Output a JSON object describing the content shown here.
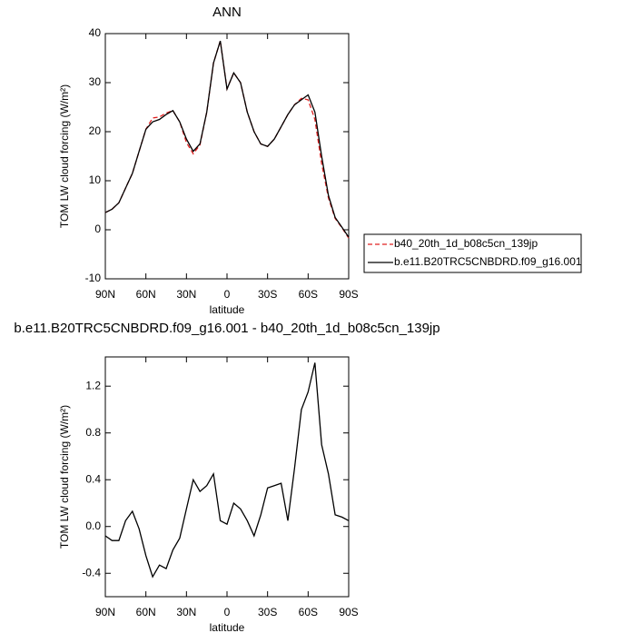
{
  "chart_data": [
    {
      "type": "line",
      "title": "ANN",
      "xlabel": "latitude",
      "ylabel": "TOM LW cloud forcing (W/m²)",
      "x": [
        90,
        85,
        80,
        75,
        70,
        65,
        60,
        55,
        50,
        45,
        40,
        35,
        30,
        25,
        20,
        15,
        10,
        5,
        0,
        -5,
        -10,
        -15,
        -20,
        -25,
        -30,
        -35,
        -40,
        -45,
        -50,
        -55,
        -60,
        -65,
        -70,
        -75,
        -80,
        -85,
        -90
      ],
      "series": [
        {
          "name": "b40_20th_1d_b08c5cn_139jp",
          "color": "#e02020",
          "line_style": "dashed",
          "values": [
            3.5,
            4.2,
            5.5,
            8.5,
            11.5,
            16,
            20.5,
            22.8,
            23,
            23.8,
            24.3,
            22,
            17.8,
            15.5,
            17.3,
            24,
            34,
            38.5,
            28.7,
            32,
            30,
            24,
            20,
            17.5,
            17,
            18.5,
            21,
            23.5,
            25.5,
            26.8,
            26.5,
            22.5,
            13.5,
            6.5,
            2.3,
            0.4,
            -1.7
          ]
        },
        {
          "name": "b.e11.B20TRC5CNBDRD.f09_g16.001",
          "color": "#000000",
          "line_style": "solid",
          "values": [
            3.5,
            4.2,
            5.5,
            8.5,
            11.5,
            16,
            20.5,
            22,
            22.5,
            23.5,
            24.3,
            22,
            18.5,
            16,
            17.5,
            24,
            34,
            38.5,
            28.7,
            32,
            30,
            24,
            20,
            17.5,
            17,
            18.5,
            21,
            23.5,
            25.5,
            26.5,
            27.5,
            24,
            15,
            7,
            2.5,
            0.5,
            -1.5
          ]
        }
      ],
      "xlim": [
        90,
        -90
      ],
      "xticks": [
        {
          "value": 90,
          "label": "90N"
        },
        {
          "value": 60,
          "label": "60N"
        },
        {
          "value": 30,
          "label": "30N"
        },
        0,
        {
          "value": -30,
          "label": "30S"
        },
        {
          "value": -60,
          "label": "60S"
        },
        {
          "value": -90,
          "label": "90S"
        }
      ],
      "ylim": [
        -10,
        40
      ],
      "yticks": [
        -10,
        0,
        10,
        20,
        30,
        40
      ],
      "legend": "right"
    },
    {
      "type": "line",
      "title": "b.e11.B20TRC5CNBDRD.f09_g16.001 - b40_20th_1d_b08c5cn_139jp",
      "xlabel": "latitude",
      "ylabel": "TOM LW cloud forcing (W/m²)",
      "x": [
        90,
        85,
        80,
        75,
        70,
        65,
        60,
        55,
        50,
        45,
        40,
        35,
        30,
        25,
        20,
        15,
        10,
        5,
        0,
        -5,
        -10,
        -15,
        -20,
        -25,
        -30,
        -35,
        -40,
        -45,
        -50,
        -55,
        -60,
        -65,
        -70,
        -75,
        -80,
        -85,
        -90
      ],
      "series": [
        {
          "color": "#000000",
          "line_style": "solid",
          "values": [
            -0.08,
            -0.12,
            -0.12,
            0.05,
            0.13,
            -0.02,
            -0.25,
            -0.43,
            -0.33,
            -0.36,
            -0.2,
            -0.1,
            0.15,
            0.4,
            0.3,
            0.35,
            0.45,
            0.05,
            0.02,
            0.2,
            0.15,
            0.05,
            -0.08,
            0.1,
            0.33,
            0.35,
            0.37,
            0.05,
            0.5,
            1.0,
            1.15,
            1.4,
            0.7,
            0.45,
            0.1,
            0.08,
            0.05
          ]
        }
      ],
      "xlim": [
        90,
        -90
      ],
      "xticks": [
        {
          "value": 90,
          "label": "90N"
        },
        {
          "value": 60,
          "label": "60N"
        },
        {
          "value": 30,
          "label": "30N"
        },
        0,
        {
          "value": -30,
          "label": "30S"
        },
        {
          "value": -60,
          "label": "60S"
        },
        {
          "value": -90,
          "label": "90S"
        }
      ],
      "ylim": [
        -0.6,
        1.45
      ],
      "yticks": [
        {
          "value": -0.4,
          "label": "-0.4"
        },
        {
          "value": 0,
          "label": "0.0"
        },
        {
          "value": 0.4,
          "label": "0.4"
        },
        {
          "value": 0.8,
          "label": "0.8"
        },
        {
          "value": 1.2,
          "label": "1.2"
        }
      ]
    }
  ]
}
